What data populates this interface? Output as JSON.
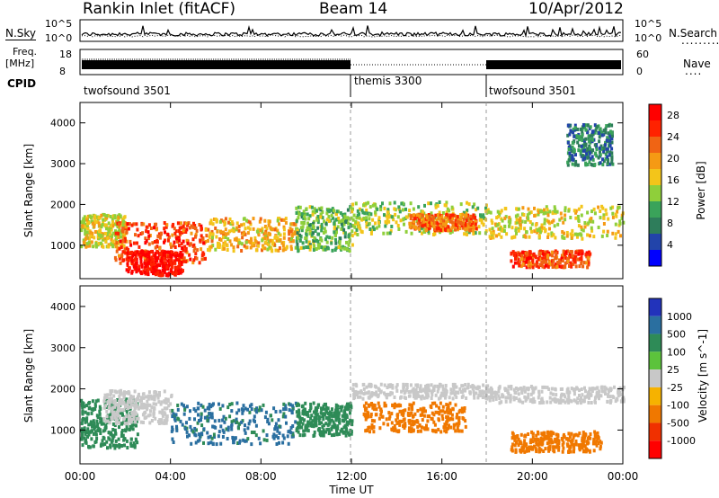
{
  "header": {
    "station": "Rankin Inlet (fitACF)",
    "beam": "Beam 14",
    "date": "10/Apr/2012"
  },
  "top_panel": {
    "left_label": "N.Sky",
    "right_label": "N.Search",
    "y_ticks_left": [
      "10^5",
      "10^0"
    ],
    "y_ticks_right": [
      "10^5",
      "10^0"
    ]
  },
  "freq_panel": {
    "label_line1": "Freq.",
    "label_line2": "[MHz]",
    "y_ticks_left": [
      "18",
      "8"
    ],
    "y_ticks_right": [
      "60",
      "0"
    ],
    "right_label": "Nave"
  },
  "cpid_panel": {
    "label": "CPID",
    "segments": [
      {
        "name": "twofsound 3501",
        "start_hour": 0,
        "end_hour": 12
      },
      {
        "name": "themis 3300",
        "start_hour": 12,
        "end_hour": 18
      },
      {
        "name": "twofsound 3501",
        "start_hour": 18,
        "end_hour": 24
      }
    ]
  },
  "chart_data": [
    {
      "type": "heatmap",
      "title": "",
      "xlabel": "Time UT",
      "ylabel": "Slant Range [km]",
      "x_tick_labels": [
        "00:00",
        "04:00",
        "08:00",
        "12:00",
        "16:00",
        "20:00",
        "00:00"
      ],
      "x_range_hours": [
        0,
        24
      ],
      "y_tick_labels": [
        "1000",
        "2000",
        "3000",
        "4000"
      ],
      "ylim": [
        180,
        4500
      ],
      "colorbar": {
        "label": "Power [dB]",
        "tick_labels": [
          "28",
          "24",
          "20",
          "16",
          "12",
          "8",
          "4"
        ],
        "range": [
          0,
          30
        ],
        "colors": [
          "#0000ff",
          "#2244aa",
          "#2e7d5b",
          "#3aa35a",
          "#8fcf3a",
          "#f3c51a",
          "#f59a14",
          "#f06414",
          "#ff2200",
          "#ff0000"
        ]
      },
      "regions": [
        {
          "t0": 0.0,
          "t1": 2.0,
          "r0": 1000,
          "r1": 1800,
          "value": 16
        },
        {
          "t0": 1.5,
          "t1": 5.5,
          "r0": 600,
          "r1": 1600,
          "value": 24
        },
        {
          "t0": 2.0,
          "t1": 4.5,
          "r0": 300,
          "r1": 900,
          "value": 28
        },
        {
          "t0": 5.5,
          "t1": 9.5,
          "r0": 900,
          "r1": 1700,
          "value": 18
        },
        {
          "t0": 9.5,
          "t1": 12.0,
          "r0": 900,
          "r1": 2000,
          "value": 12
        },
        {
          "t0": 12.0,
          "t1": 18.0,
          "r0": 1300,
          "r1": 2100,
          "value": 14
        },
        {
          "t0": 14.5,
          "t1": 17.5,
          "r0": 1400,
          "r1": 1800,
          "value": 22
        },
        {
          "t0": 18.0,
          "t1": 24.0,
          "r0": 1200,
          "r1": 2000,
          "value": 16
        },
        {
          "t0": 19.0,
          "t1": 22.5,
          "r0": 500,
          "r1": 900,
          "value": 24
        },
        {
          "t0": 21.5,
          "t1": 23.5,
          "r0": 3000,
          "r1": 4000,
          "value": 8
        }
      ]
    },
    {
      "type": "heatmap",
      "title": "",
      "xlabel": "Time UT",
      "ylabel": "Slant Range [km]",
      "x_tick_labels": [
        "00:00",
        "04:00",
        "08:00",
        "12:00",
        "16:00",
        "20:00",
        "00:00"
      ],
      "x_range_hours": [
        0,
        24
      ],
      "y_tick_labels": [
        "1000",
        "2000",
        "3000",
        "4000"
      ],
      "ylim": [
        180,
        4500
      ],
      "colorbar": {
        "label": "Velocity [m s^-1]",
        "tick_labels": [
          "1000",
          "500",
          "100",
          "25",
          "-25",
          "-100",
          "-500",
          "-1000"
        ],
        "levels": [
          1000,
          500,
          100,
          25,
          -25,
          -100,
          -500,
          -1000
        ],
        "colors": [
          "#2233bb",
          "#2a6fa0",
          "#2e8b57",
          "#5cc33c",
          "#c8c8c8",
          "#f6b200",
          "#f07800",
          "#f03000",
          "#ff0000"
        ]
      },
      "regions": [
        {
          "t0": 0.0,
          "t1": 2.5,
          "r0": 600,
          "r1": 1800,
          "value": 200
        },
        {
          "t0": 1.0,
          "t1": 4.0,
          "r0": 1200,
          "r1": 2000,
          "value": 0
        },
        {
          "t0": 4.0,
          "t1": 9.5,
          "r0": 700,
          "r1": 1700,
          "value": 600
        },
        {
          "t0": 9.5,
          "t1": 12.0,
          "r0": 900,
          "r1": 1700,
          "value": 200
        },
        {
          "t0": 12.0,
          "t1": 18.0,
          "r0": 1800,
          "r1": 2150,
          "value": 0
        },
        {
          "t0": 12.5,
          "t1": 17.0,
          "r0": 1000,
          "r1": 1700,
          "value": -200
        },
        {
          "t0": 18.0,
          "t1": 24.0,
          "r0": 1700,
          "r1": 2100,
          "value": 0
        },
        {
          "t0": 19.0,
          "t1": 23.0,
          "r0": 500,
          "r1": 1000,
          "value": -200
        }
      ]
    }
  ]
}
